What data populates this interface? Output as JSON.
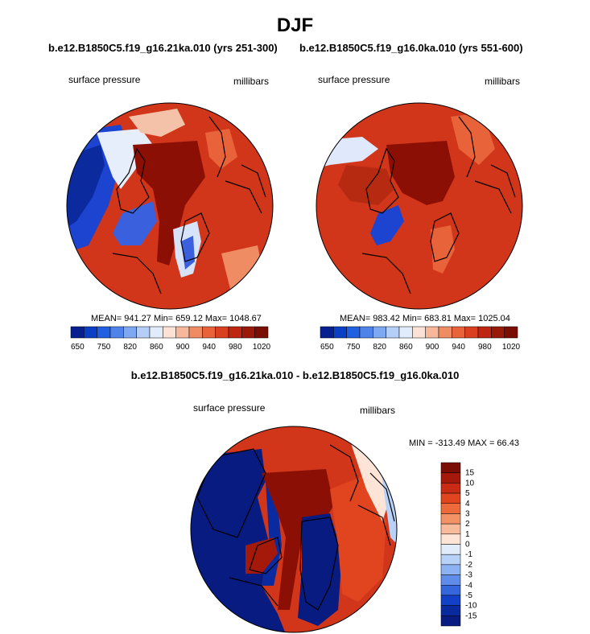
{
  "title": "DJF",
  "panels": [
    {
      "case_title": "b.e12.B1850C5.f19_g16.21ka.010 (yrs 251-300)",
      "variable": "surface pressure",
      "units": "millibars",
      "stats": "MEAN= 941.27  Min= 659.12  Max= 1048.67"
    },
    {
      "case_title": "b.e12.B1850C5.f19_g16.0ka.010 (yrs 551-600)",
      "variable": "surface pressure",
      "units": "millibars",
      "stats": "MEAN= 983.42  Min= 683.81  Max= 1025.04"
    }
  ],
  "difference": {
    "title": "b.e12.B1850C5.f19_g16.21ka.010 - b.e12.B1850C5.f19_g16.0ka.010",
    "variable": "surface pressure",
    "units": "millibars",
    "stats": "MIN = -313.49 MAX =  66.43"
  },
  "chart_data": [
    {
      "type": "heatmap",
      "projection": "polar-stereographic",
      "title": "b.e12.B1850C5.f19_g16.21ka.010 (yrs 251-300)",
      "variable": "surface pressure",
      "units": "millibars",
      "mean": 941.27,
      "min": 659.12,
      "max": 1048.67,
      "colorbar_orientation": "horizontal",
      "colorbar_tick_labels": [
        "650",
        "750",
        "820",
        "860",
        "900",
        "940",
        "980",
        "1020"
      ],
      "colorbar_colors": [
        "#071f8f",
        "#0b3fc4",
        "#2160e0",
        "#4f83ea",
        "#7ea8f2",
        "#b4cef8",
        "#e0ebfb",
        "#fbe2d4",
        "#f6b79b",
        "#f08c63",
        "#e8623a",
        "#d9401f",
        "#be2612",
        "#9a1a0a",
        "#7a0e04"
      ]
    },
    {
      "type": "heatmap",
      "projection": "polar-stereographic",
      "title": "b.e12.B1850C5.f19_g16.0ka.010 (yrs 551-600)",
      "variable": "surface pressure",
      "units": "millibars",
      "mean": 983.42,
      "min": 683.81,
      "max": 1025.04,
      "colorbar_orientation": "horizontal",
      "colorbar_tick_labels": [
        "650",
        "750",
        "820",
        "860",
        "900",
        "940",
        "980",
        "1020"
      ],
      "colorbar_colors": [
        "#071f8f",
        "#0b3fc4",
        "#2160e0",
        "#4f83ea",
        "#7ea8f2",
        "#b4cef8",
        "#e0ebfb",
        "#fbe2d4",
        "#f6b79b",
        "#f08c63",
        "#e8623a",
        "#d9401f",
        "#be2612",
        "#9a1a0a",
        "#7a0e04"
      ]
    },
    {
      "type": "heatmap",
      "projection": "polar-stereographic",
      "title": "b.e12.B1850C5.f19_g16.21ka.010 - b.e12.B1850C5.f19_g16.0ka.010",
      "variable": "surface pressure",
      "units": "millibars",
      "min": -313.49,
      "max": 66.43,
      "colorbar_orientation": "vertical",
      "colorbar_tick_labels": [
        "15",
        "10",
        "5",
        "4",
        "3",
        "2",
        "1",
        "0",
        "-1",
        "-2",
        "-3",
        "-4",
        "-5",
        "-10",
        "-15"
      ],
      "colorbar_colors": [
        "#7a0e04",
        "#a5190a",
        "#c92b14",
        "#e0451f",
        "#ec6a3c",
        "#f39266",
        "#f8bc9d",
        "#fde4d6",
        "#e1ecfb",
        "#b8d1f7",
        "#8cb2f2",
        "#5f8de9",
        "#3566db",
        "#1240c6",
        "#0a2aa0",
        "#071b80"
      ]
    }
  ],
  "colors": {
    "ocean_deep_red": "#8b0f05",
    "red": "#d2361a",
    "blue": "#1c44d0",
    "coastline": "#000000"
  }
}
